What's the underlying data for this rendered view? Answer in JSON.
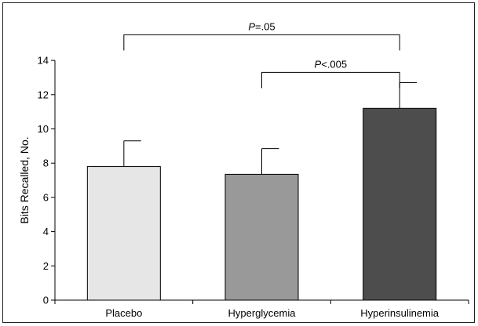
{
  "chart_data": {
    "type": "bar",
    "ylabel": "Bits Recalled, No.",
    "xlabel": "",
    "ylim": [
      0,
      14
    ],
    "yticks": [
      0,
      2,
      4,
      6,
      8,
      10,
      12,
      14
    ],
    "grid": false,
    "categories": [
      "Placebo",
      "Hyperglycemia",
      "Hyperinsulinemia"
    ],
    "values": [
      7.8,
      7.35,
      11.2
    ],
    "errors": [
      1.5,
      1.5,
      1.5
    ],
    "colors": [
      "#e6e6e6",
      "#999999",
      "#4d4d4d"
    ],
    "annotations": [
      {
        "from": 0,
        "to": 2,
        "y": 15.5,
        "prefix": "P",
        "label": "=.05"
      },
      {
        "from": 1,
        "to": 2,
        "y": 13.3,
        "prefix": "P",
        "label": "<.005"
      }
    ]
  }
}
